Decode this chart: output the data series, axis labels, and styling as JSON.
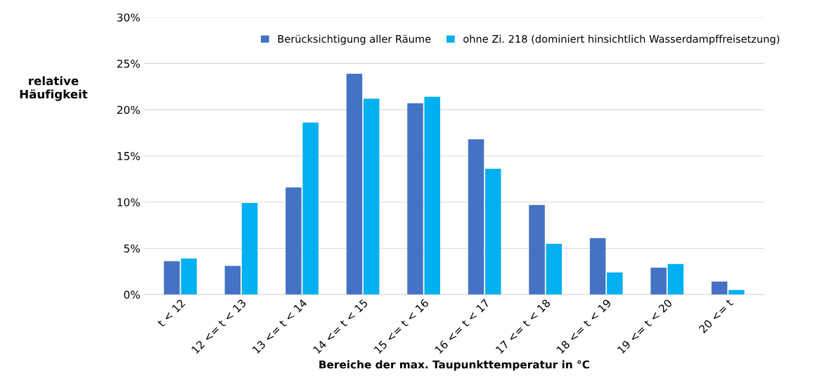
{
  "chart_data": {
    "type": "bar",
    "ylabel": "relative\nHäufigkeit",
    "xlabel": "Bereiche der max. Taupunkttemperatur in °C",
    "categories": [
      "t < 12",
      "12 <= t < 13",
      "13 <= t < 14",
      "14 <= t < 15",
      "15 <= t < 16",
      "16 <= t < 17",
      "17 <= t < 18",
      "18 <= t < 19",
      "19 <= t < 20",
      "20 <= t"
    ],
    "series": [
      {
        "name": "Berücksichtigung aller Räume",
        "color": "#4472c4",
        "values": [
          3.6,
          3.1,
          11.6,
          23.9,
          20.7,
          16.8,
          9.7,
          6.1,
          2.9,
          1.4
        ]
      },
      {
        "name": "ohne Zi. 218 (dominiert hinsichtlich Wasserdampffreisetzung)",
        "color": "#00b0f0",
        "values": [
          3.9,
          9.9,
          18.6,
          21.2,
          21.4,
          13.6,
          5.5,
          2.4,
          3.3,
          0.5
        ]
      }
    ],
    "ylim": [
      0,
      30
    ],
    "yticks": [
      {
        "value": 0,
        "label": "0%"
      },
      {
        "value": 5,
        "label": "5%"
      },
      {
        "value": 10,
        "label": "10%"
      },
      {
        "value": 15,
        "label": "15%"
      },
      {
        "value": 20,
        "label": "20%"
      },
      {
        "value": 25,
        "label": "25%"
      },
      {
        "value": 30,
        "label": "30%"
      }
    ],
    "grid": "y",
    "legend": "top right"
  }
}
